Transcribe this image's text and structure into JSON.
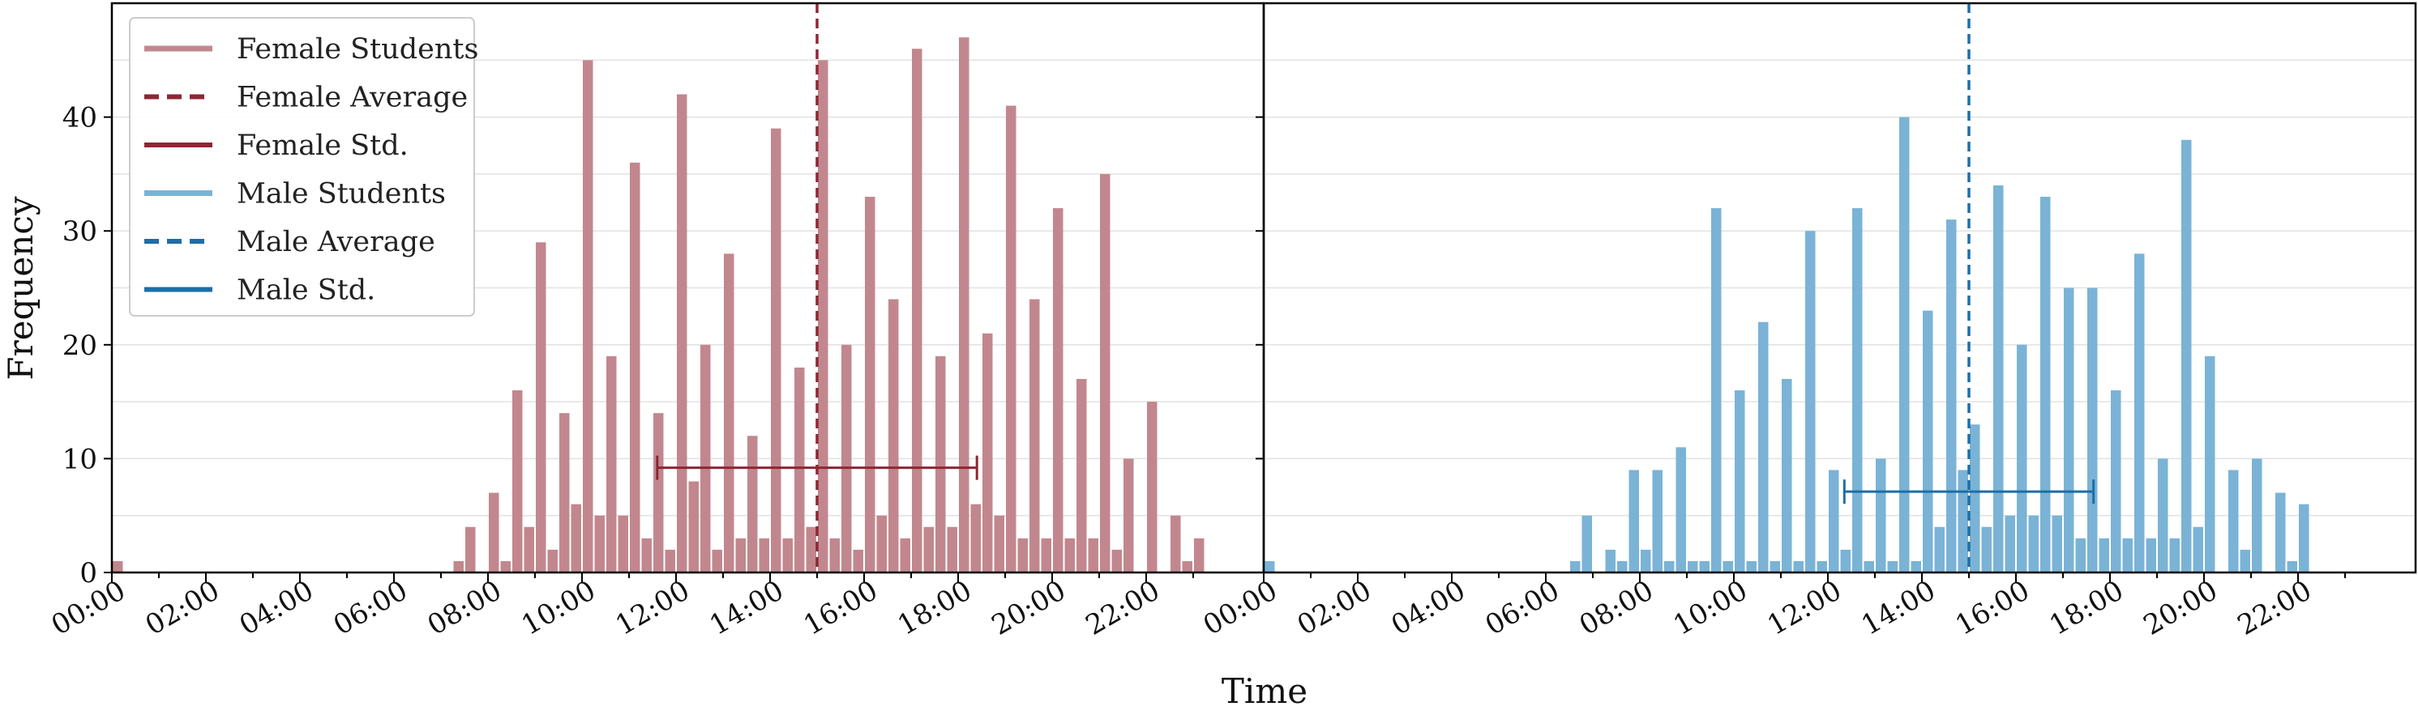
{
  "chart_data": {
    "type": "bar",
    "xlabel": "Time",
    "ylabel": "Frequency",
    "ylim": [
      0,
      50
    ],
    "yticks": [
      0,
      10,
      20,
      30,
      40
    ],
    "xlim": [
      0,
      24.5
    ],
    "bin_width_hours": 0.25,
    "x_tick_labels": [
      "00:00",
      "02:00",
      "04:00",
      "06:00",
      "08:00",
      "10:00",
      "12:00",
      "14:00",
      "16:00",
      "18:00",
      "20:00",
      "22:00"
    ],
    "x_tick_hours": [
      0,
      2,
      4,
      6,
      8,
      10,
      12,
      14,
      16,
      18,
      20,
      22
    ],
    "grid": "horizontal",
    "legend_position": "top-left",
    "legend": [
      {
        "label": "Female Students",
        "style": "solid-light",
        "color": "#c2878e"
      },
      {
        "label": "Female Average",
        "style": "dashed",
        "color": "#8e2634"
      },
      {
        "label": "Female Std.",
        "style": "solid",
        "color": "#8e2634"
      },
      {
        "label": "Male Students",
        "style": "solid-light",
        "color": "#7ab3d6"
      },
      {
        "label": "Male Average",
        "style": "dashed",
        "color": "#1c6ea8"
      },
      {
        "label": "Male Std.",
        "style": "solid",
        "color": "#1c6ea8"
      }
    ],
    "series": [
      {
        "name": "Female Students",
        "bar_color": "#c2878e",
        "line_color": "#8e2634",
        "mean_hour": 15.0,
        "std_hours": 3.4,
        "std_y": 9.2,
        "bins": [
          [
            0.0,
            1
          ],
          [
            7.25,
            1
          ],
          [
            7.5,
            4
          ],
          [
            7.75,
            0
          ],
          [
            8.0,
            7
          ],
          [
            8.25,
            1
          ],
          [
            8.5,
            16
          ],
          [
            8.75,
            4
          ],
          [
            9.0,
            29
          ],
          [
            9.25,
            2
          ],
          [
            9.5,
            14
          ],
          [
            9.75,
            6
          ],
          [
            10.0,
            45
          ],
          [
            10.25,
            5
          ],
          [
            10.5,
            19
          ],
          [
            10.75,
            5
          ],
          [
            11.0,
            36
          ],
          [
            11.25,
            3
          ],
          [
            11.5,
            14
          ],
          [
            11.75,
            2
          ],
          [
            12.0,
            42
          ],
          [
            12.25,
            8
          ],
          [
            12.5,
            20
          ],
          [
            12.75,
            2
          ],
          [
            13.0,
            28
          ],
          [
            13.25,
            3
          ],
          [
            13.5,
            12
          ],
          [
            13.75,
            3
          ],
          [
            14.0,
            39
          ],
          [
            14.25,
            3
          ],
          [
            14.5,
            18
          ],
          [
            14.75,
            4
          ],
          [
            15.0,
            45
          ],
          [
            15.25,
            3
          ],
          [
            15.5,
            20
          ],
          [
            15.75,
            2
          ],
          [
            16.0,
            33
          ],
          [
            16.25,
            5
          ],
          [
            16.5,
            24
          ],
          [
            16.75,
            3
          ],
          [
            17.0,
            46
          ],
          [
            17.25,
            4
          ],
          [
            17.5,
            19
          ],
          [
            17.75,
            4
          ],
          [
            18.0,
            47
          ],
          [
            18.25,
            6
          ],
          [
            18.5,
            21
          ],
          [
            18.75,
            5
          ],
          [
            19.0,
            41
          ],
          [
            19.25,
            3
          ],
          [
            19.5,
            24
          ],
          [
            19.75,
            3
          ],
          [
            20.0,
            32
          ],
          [
            20.25,
            3
          ],
          [
            20.5,
            17
          ],
          [
            20.75,
            3
          ],
          [
            21.0,
            35
          ],
          [
            21.25,
            2
          ],
          [
            21.5,
            10
          ],
          [
            21.75,
            0
          ],
          [
            22.0,
            15
          ],
          [
            22.25,
            0
          ],
          [
            22.5,
            5
          ],
          [
            22.75,
            1
          ],
          [
            23.0,
            3
          ]
        ]
      },
      {
        "name": "Male Students",
        "bar_color": "#7ab3d6",
        "line_color": "#1c6ea8",
        "mean_hour": 15.0,
        "std_hours": 2.65,
        "std_y": 7.1,
        "bins": [
          [
            0.0,
            1
          ],
          [
            6.5,
            1
          ],
          [
            6.75,
            5
          ],
          [
            7.0,
            0
          ],
          [
            7.25,
            2
          ],
          [
            7.5,
            1
          ],
          [
            7.75,
            9
          ],
          [
            8.0,
            2
          ],
          [
            8.25,
            9
          ],
          [
            8.5,
            1
          ],
          [
            8.75,
            11
          ],
          [
            9.0,
            1
          ],
          [
            9.25,
            1
          ],
          [
            9.5,
            32
          ],
          [
            9.75,
            1
          ],
          [
            10.0,
            16
          ],
          [
            10.25,
            1
          ],
          [
            10.5,
            22
          ],
          [
            10.75,
            1
          ],
          [
            11.0,
            17
          ],
          [
            11.25,
            1
          ],
          [
            11.5,
            30
          ],
          [
            11.75,
            1
          ],
          [
            12.0,
            9
          ],
          [
            12.25,
            2
          ],
          [
            12.5,
            32
          ],
          [
            12.75,
            1
          ],
          [
            13.0,
            10
          ],
          [
            13.25,
            1
          ],
          [
            13.5,
            40
          ],
          [
            13.75,
            1
          ],
          [
            14.0,
            23
          ],
          [
            14.25,
            4
          ],
          [
            14.5,
            31
          ],
          [
            14.75,
            9
          ],
          [
            15.0,
            13
          ],
          [
            15.25,
            4
          ],
          [
            15.5,
            34
          ],
          [
            15.75,
            5
          ],
          [
            16.0,
            20
          ],
          [
            16.25,
            5
          ],
          [
            16.5,
            33
          ],
          [
            16.75,
            5
          ],
          [
            17.0,
            25
          ],
          [
            17.25,
            3
          ],
          [
            17.5,
            25
          ],
          [
            17.75,
            3
          ],
          [
            18.0,
            16
          ],
          [
            18.25,
            3
          ],
          [
            18.5,
            28
          ],
          [
            18.75,
            3
          ],
          [
            19.0,
            10
          ],
          [
            19.25,
            3
          ],
          [
            19.5,
            38
          ],
          [
            19.75,
            4
          ],
          [
            20.0,
            19
          ],
          [
            20.25,
            0
          ],
          [
            20.5,
            9
          ],
          [
            20.75,
            2
          ],
          [
            21.0,
            10
          ],
          [
            21.25,
            0
          ],
          [
            21.5,
            7
          ],
          [
            21.75,
            1
          ],
          [
            22.0,
            6
          ]
        ]
      }
    ]
  }
}
